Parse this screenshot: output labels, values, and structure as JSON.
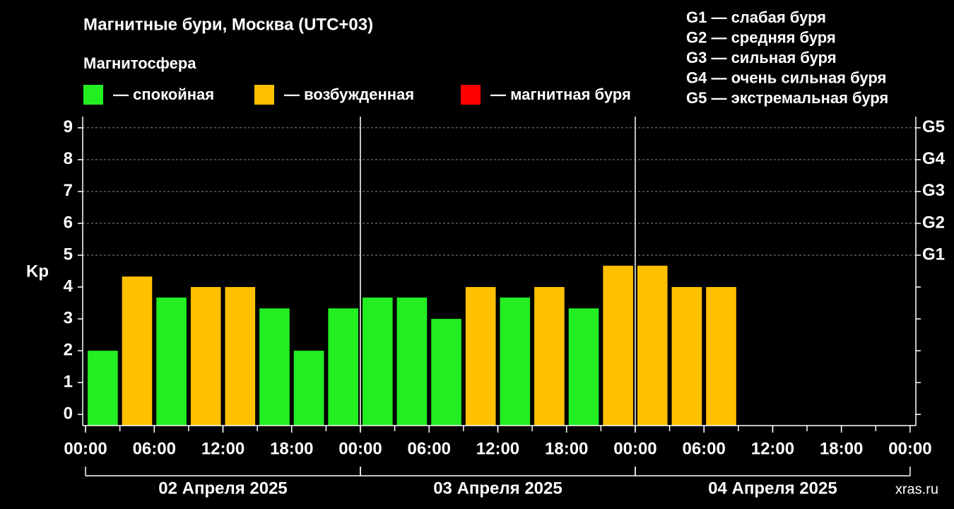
{
  "chart_data": {
    "type": "bar",
    "title": "Магнитные бури, Москва (UTC+03)",
    "subtitle": "Магнитосфера",
    "legend": [
      {
        "label": "— спокойная",
        "color": "#22ee22"
      },
      {
        "label": "— возбужденная",
        "color": "#ffc000"
      },
      {
        "label": "— магнитная буря",
        "color": "#ff0000"
      }
    ],
    "g_legend": [
      "G1 — слабая буря",
      "G2 — средняя буря",
      "G3 — сильная буря",
      "G4 — очень сильная буря",
      "G5 — экстремальная буря"
    ],
    "ylabel": "Kp",
    "x": [
      0,
      3,
      6,
      9,
      12,
      15,
      18,
      21,
      24,
      27,
      30,
      33,
      36,
      39,
      42,
      45,
      48,
      51,
      54,
      57,
      60,
      63,
      66,
      69
    ],
    "values": [
      2,
      4.33,
      3.67,
      4,
      4,
      3.33,
      2,
      3.33,
      3.67,
      3.67,
      3,
      4,
      3.67,
      4,
      3.33,
      4.67,
      4.67,
      4,
      4,
      null,
      null,
      null,
      null,
      null
    ],
    "colors": [
      "#22ee22",
      "#ffc000",
      "#22ee22",
      "#ffc000",
      "#ffc000",
      "#22ee22",
      "#22ee22",
      "#22ee22",
      "#22ee22",
      "#22ee22",
      "#22ee22",
      "#ffc000",
      "#22ee22",
      "#ffc000",
      "#22ee22",
      "#ffc000",
      "#ffc000",
      "#ffc000",
      "#ffc000",
      null,
      null,
      null,
      null,
      null
    ],
    "xlim": [
      -0.25,
      72.5
    ],
    "xticks": [
      {
        "value": 0,
        "label": "00:00"
      },
      {
        "value": 6,
        "label": "06:00"
      },
      {
        "value": 12,
        "label": "12:00"
      },
      {
        "value": 18,
        "label": "18:00"
      },
      {
        "value": 24,
        "label": "00:00"
      },
      {
        "value": 30,
        "label": "06:00"
      },
      {
        "value": 36,
        "label": "12:00"
      },
      {
        "value": 42,
        "label": "18:00"
      },
      {
        "value": 48,
        "label": "00:00"
      },
      {
        "value": 54,
        "label": "06:00"
      },
      {
        "value": 60,
        "label": "12:00"
      },
      {
        "value": 66,
        "label": "18:00"
      },
      {
        "value": 72,
        "label": "00:00"
      }
    ],
    "days": [
      {
        "label": "02 Апреля 2025",
        "start": 0,
        "end": 24
      },
      {
        "label": "03 Апреля 2025",
        "start": 24,
        "end": 48
      },
      {
        "label": "04 Апреля 2025",
        "start": 48,
        "end": 72
      }
    ],
    "ylim": [
      -0.35,
      9.35
    ],
    "yticks": [
      0,
      1,
      2,
      3,
      4,
      5,
      6,
      7,
      8,
      9
    ],
    "y2ticks": [
      {
        "value": 5,
        "label": "G1"
      },
      {
        "value": 6,
        "label": "G2"
      },
      {
        "value": 7,
        "label": "G3"
      },
      {
        "value": 8,
        "label": "G4"
      },
      {
        "value": 9,
        "label": "G5"
      }
    ],
    "grid": true,
    "watermark": "xras.ru"
  }
}
